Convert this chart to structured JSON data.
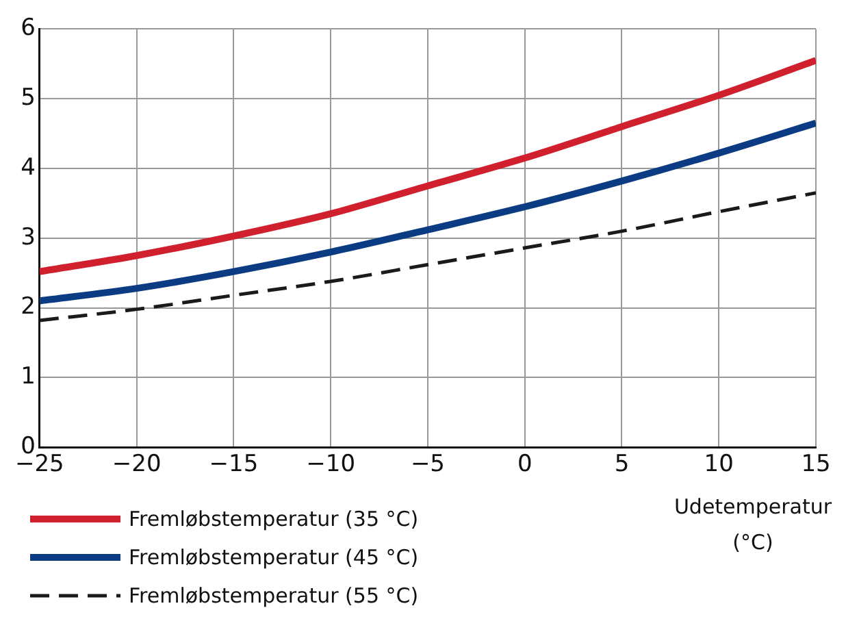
{
  "chart_data": {
    "type": "line",
    "xlabel": "Udetemperatur (°C)",
    "x": [
      -25,
      -20,
      -15,
      -10,
      -5,
      0,
      5,
      10,
      15
    ],
    "xlim": [
      -25,
      15
    ],
    "xticks": [
      {
        "value": -25,
        "label": "−25"
      },
      {
        "value": -20,
        "label": "−20"
      },
      {
        "value": -15,
        "label": "−15"
      },
      {
        "value": -10,
        "label": "−10"
      },
      {
        "value": -5,
        "label": "−5"
      },
      0,
      5,
      10,
      15
    ],
    "ylim": [
      0,
      6
    ],
    "yticks": [
      0,
      1,
      2,
      3,
      4,
      5,
      6
    ],
    "grid": true,
    "legend": "bottom",
    "marker": "none",
    "series": [
      {
        "name": "Fremløbstemperatur (35 °C)",
        "color": "#d0202e",
        "values": [
          2.52,
          2.75,
          3.03,
          3.35,
          3.75,
          4.15,
          4.6,
          5.05,
          5.55
        ]
      },
      {
        "name": "Fremløbstemperatur (45 °C)",
        "color": "#0b3b82",
        "values": [
          2.1,
          2.28,
          2.52,
          2.8,
          3.12,
          3.45,
          3.82,
          4.22,
          4.65
        ]
      },
      {
        "name": "Fremløbstemperatur (55 °C)",
        "color": "#1a1a1a",
        "line_style": "dashed",
        "values": [
          1.82,
          1.98,
          2.18,
          2.38,
          2.62,
          2.86,
          3.1,
          3.38,
          3.65
        ]
      }
    ]
  }
}
